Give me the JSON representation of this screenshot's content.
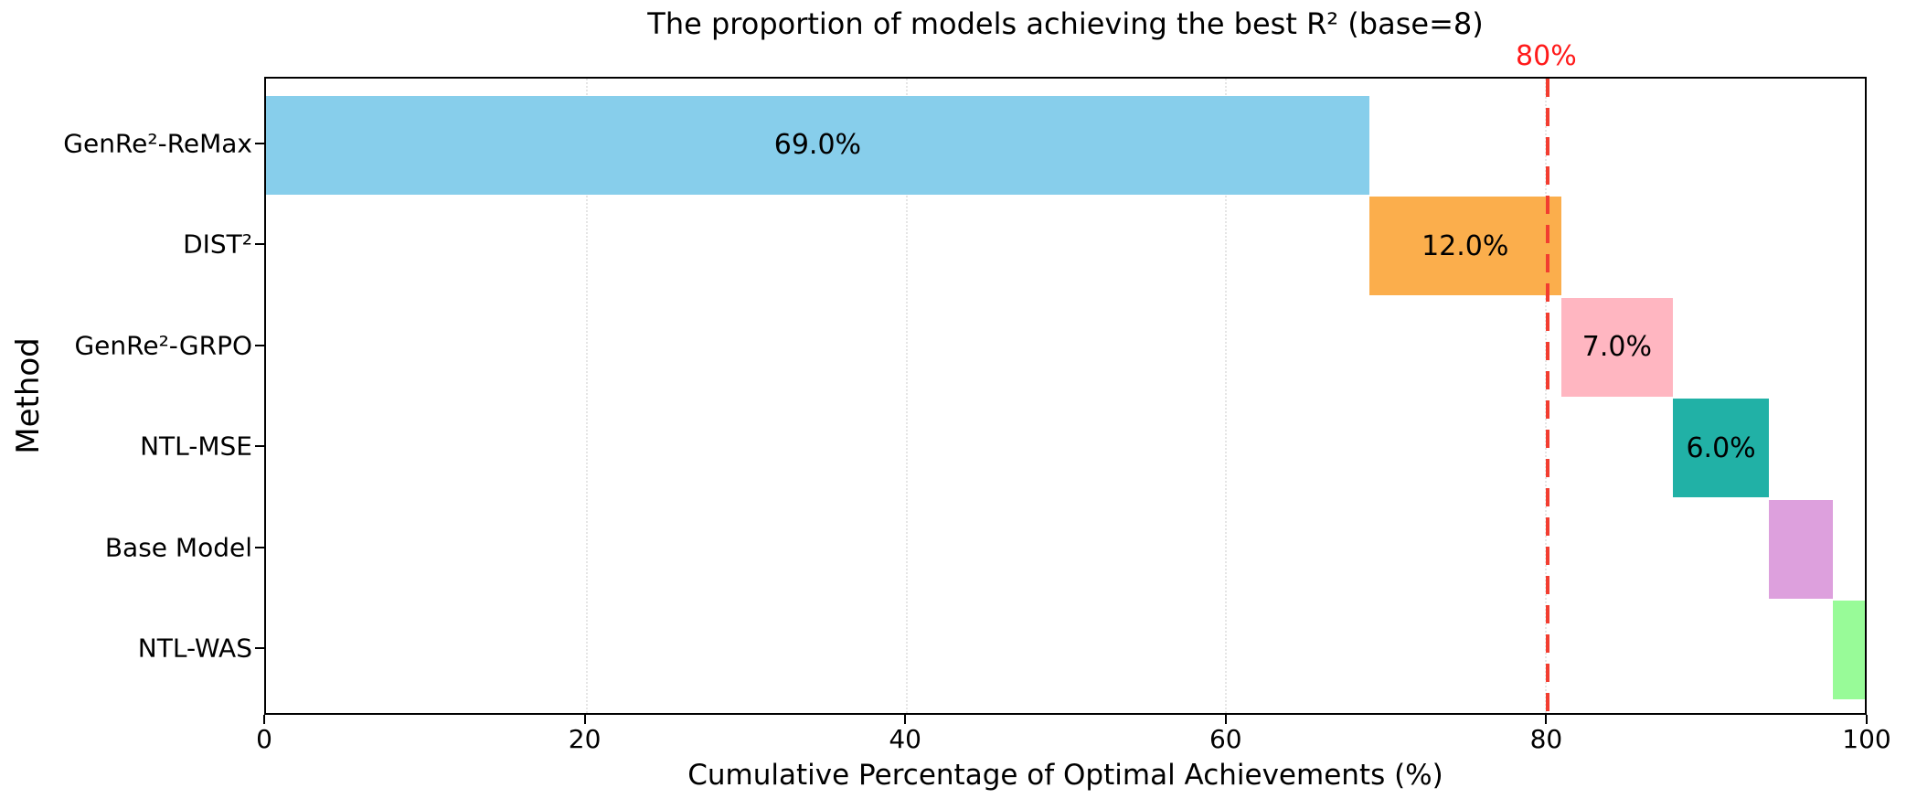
{
  "chart_data": {
    "type": "bar",
    "orientation": "horizontal",
    "waterfall": true,
    "title": "The proportion of models achieving the best R² (base=8)",
    "xlabel": "Cumulative Percentage of Optimal Achievements (%)",
    "ylabel": "Method",
    "xlim": [
      0,
      100
    ],
    "xticks": [
      0,
      20,
      40,
      60,
      80,
      100
    ],
    "xtick_labels": [
      "0",
      "20",
      "40",
      "60",
      "80",
      "100"
    ],
    "categories": [
      "GenRe²-ReMax",
      "DIST²",
      "GenRe²-GRPO",
      "NTL-MSE",
      "Base Model",
      "NTL-WAS"
    ],
    "values": [
      69.0,
      12.0,
      7.0,
      6.0,
      4.0,
      2.0
    ],
    "starts": [
      0.0,
      69.0,
      81.0,
      88.0,
      94.0,
      98.0
    ],
    "bar_labels": [
      "69.0%",
      "12.0%",
      "7.0%",
      "6.0%",
      "",
      ""
    ],
    "colors": [
      "#87CEEB",
      "#FBAE4C",
      "#FFB6C1",
      "#21B1A6",
      "#DDA0DD",
      "#98FB98"
    ],
    "reference_line": {
      "x": 80,
      "label": "80%",
      "label_color": "#ff1a1a",
      "line_color": "#f23d30",
      "style": "dashed"
    },
    "grid": {
      "axis": "x",
      "style": "dotted"
    },
    "legend": "none",
    "background": "#ffffff"
  }
}
